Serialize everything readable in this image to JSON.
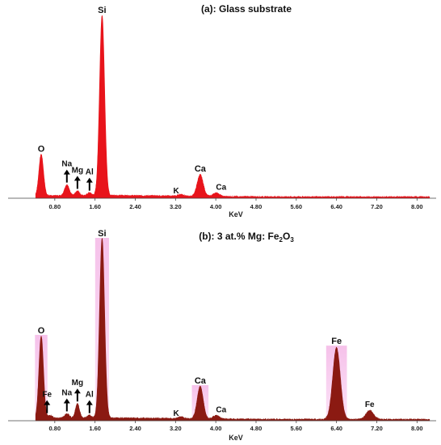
{
  "chart_data": [
    {
      "type": "line",
      "title": "(a): Glass substrate",
      "xlabel": "KeV",
      "ylabel": "",
      "xlim": [
        0.0,
        8.3
      ],
      "ylim": [
        0,
        100
      ],
      "x_ticks": [
        "0.80",
        "1.60",
        "2.40",
        "3.20",
        "4.00",
        "4.80",
        "5.60",
        "6.40",
        "7.20",
        "8.00"
      ],
      "color": "#e8141b",
      "peaks": [
        {
          "label": "O",
          "x": 0.53,
          "y": 23,
          "width": 0.045,
          "arrow": false
        },
        {
          "label": "Na",
          "x": 1.04,
          "y": 6,
          "width": 0.045,
          "arrow": true
        },
        {
          "label": "Mg",
          "x": 1.25,
          "y": 2.5,
          "width": 0.04,
          "arrow": true
        },
        {
          "label": "Al",
          "x": 1.49,
          "y": 1.5,
          "width": 0.04,
          "arrow": true
        },
        {
          "label": "Si",
          "x": 1.74,
          "y": 100,
          "width": 0.05,
          "arrow": false
        },
        {
          "label": "K",
          "x": 3.31,
          "y": 1.0,
          "width": 0.05,
          "arrow": false
        },
        {
          "label": "Ca",
          "x": 3.69,
          "y": 12,
          "width": 0.06,
          "arrow": false
        },
        {
          "label": "Ca",
          "x": 4.01,
          "y": 2.0,
          "width": 0.06,
          "arrow": false
        }
      ]
    },
    {
      "type": "line",
      "title": "(b): 3 at.% Mg: Fe",
      "title_sub1": "2",
      "title_mid": "O",
      "title_sub2": "3",
      "xlabel": "KeV",
      "ylabel": "",
      "xlim": [
        0.0,
        8.3
      ],
      "ylim": [
        0,
        100
      ],
      "x_ticks": [
        "0.80",
        "1.60",
        "2.40",
        "3.20",
        "4.00",
        "4.80",
        "5.60",
        "6.40",
        "7.20",
        "8.00"
      ],
      "color": "#8b1a12",
      "peaks": [
        {
          "label": "Fe",
          "x": 0.71,
          "y": 1.5,
          "width": 0.04,
          "arrow": true
        },
        {
          "label": "O",
          "x": 0.53,
          "y": 46,
          "width": 0.045,
          "arrow": false
        },
        {
          "label": "Na",
          "x": 1.04,
          "y": 2.5,
          "width": 0.045,
          "arrow": true
        },
        {
          "label": "Mg",
          "x": 1.25,
          "y": 8,
          "width": 0.04,
          "arrow": true
        },
        {
          "label": "Al",
          "x": 1.49,
          "y": 1.5,
          "width": 0.04,
          "arrow": true
        },
        {
          "label": "Si",
          "x": 1.74,
          "y": 100,
          "width": 0.05,
          "arrow": false
        },
        {
          "label": "K",
          "x": 3.31,
          "y": 1.0,
          "width": 0.05,
          "arrow": false
        },
        {
          "label": "Ca",
          "x": 3.69,
          "y": 18,
          "width": 0.06,
          "arrow": false
        },
        {
          "label": "Ca",
          "x": 4.01,
          "y": 2.0,
          "width": 0.06,
          "arrow": false
        },
        {
          "label": "Fe",
          "x": 6.4,
          "y": 40,
          "width": 0.075,
          "arrow": false
        },
        {
          "label": "Fe",
          "x": 7.06,
          "y": 5,
          "width": 0.075,
          "arrow": false
        }
      ]
    }
  ]
}
